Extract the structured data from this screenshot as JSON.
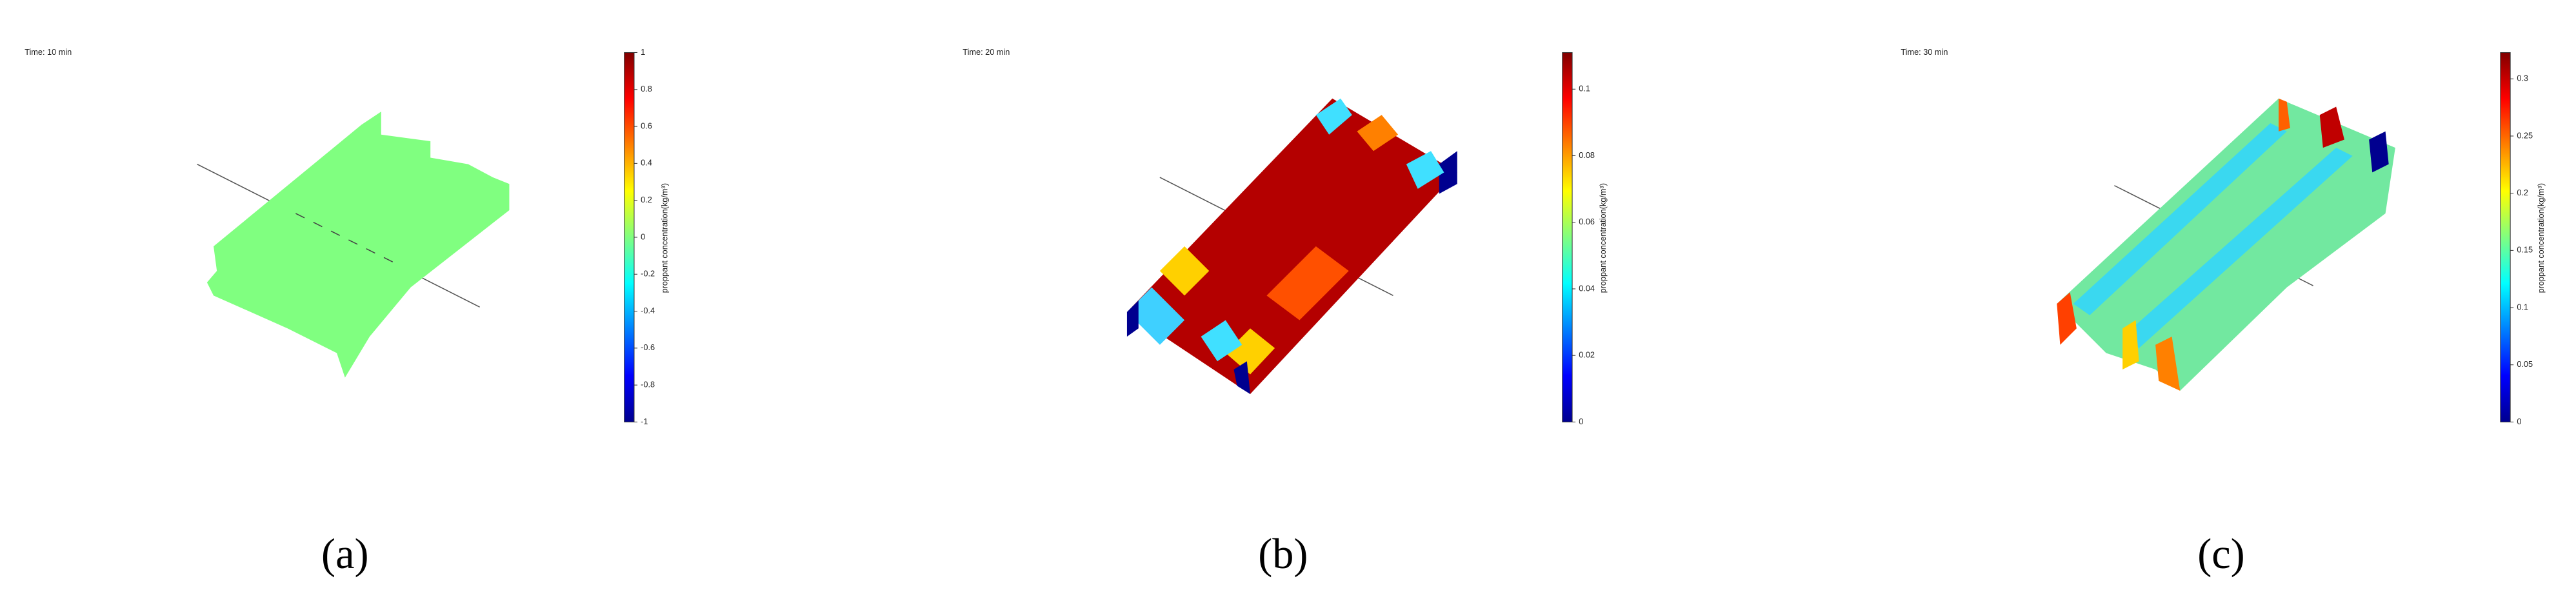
{
  "chart_data": [
    {
      "type": "colorbar",
      "time_label": "Time: 10 min",
      "colorbar_label": "proppant concentration(kg/m³)",
      "panel_label": "(a)",
      "ylim": [
        -1,
        1
      ],
      "yticks": [
        -1,
        -0.8,
        -0.6,
        -0.4,
        -0.2,
        0,
        0.2,
        0.4,
        0.6,
        0.8,
        1
      ]
    },
    {
      "type": "colorbar",
      "time_label": "Time: 20 min",
      "colorbar_label": "proppant concentration(kg/m³)",
      "panel_label": "(b)",
      "ylim": [
        0,
        0.111
      ],
      "yticks": [
        0,
        0.02,
        0.04,
        0.06,
        0.08,
        0.1
      ]
    },
    {
      "type": "colorbar",
      "time_label": "Time: 30 min",
      "colorbar_label": "proppant concentration(kg/m³)",
      "panel_label": "(c)",
      "ylim": [
        0,
        0.323
      ],
      "yticks": [
        0,
        0.05,
        0.1,
        0.15,
        0.2,
        0.25,
        0.3
      ]
    }
  ]
}
